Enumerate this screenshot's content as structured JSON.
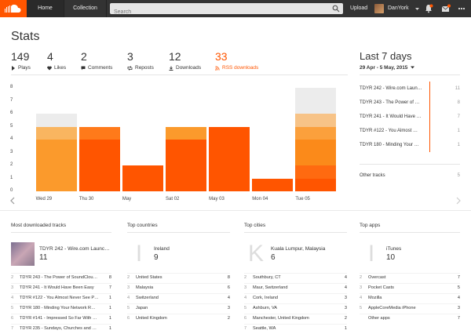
{
  "header": {
    "home": "Home",
    "collection": "Collection",
    "search_placeholder": "Search",
    "upload": "Upload",
    "username": "DanYork"
  },
  "page": {
    "title": "Stats"
  },
  "stats": [
    {
      "value": "149",
      "label": "Plays",
      "icon": "play-icon"
    },
    {
      "value": "4",
      "label": "Likes",
      "icon": "heart-icon"
    },
    {
      "value": "2",
      "label": "Comments",
      "icon": "comment-icon"
    },
    {
      "value": "3",
      "label": "Reposts",
      "icon": "repost-icon"
    },
    {
      "value": "12",
      "label": "Downloads",
      "icon": "download-icon"
    },
    {
      "value": "33",
      "label": "RSS downloads",
      "icon": "rss-icon",
      "active": true
    }
  ],
  "range": {
    "title": "Last 7 days",
    "dates": "29 Apr - 5 May, 2015"
  },
  "top_tracks_panel": [
    {
      "title": "TDYR 242 - Wire.com Laun…",
      "count": "11"
    },
    {
      "title": "TDYR 243 - The Power of …",
      "count": "8"
    },
    {
      "title": "TDYR 241 - It Would Have …",
      "count": "7"
    },
    {
      "title": "TDYR #122 - You Almost …",
      "count": "1"
    },
    {
      "title": "TDYR 180 - Minding Your …",
      "count": "1"
    }
  ],
  "other_tracks": {
    "label": "Other tracks",
    "count": "5"
  },
  "chart_data": {
    "type": "bar",
    "stacked": true,
    "categories": [
      "Wed 29",
      "Thu 30",
      "May",
      "Sat 02",
      "May 03",
      "Mon 04",
      "Tue 05"
    ],
    "segments": [
      [
        4,
        1,
        1
      ],
      [
        4,
        1,
        0
      ],
      [
        2
      ],
      [
        4,
        1
      ],
      [
        5
      ],
      [
        1
      ],
      [
        1,
        1,
        2,
        1,
        1,
        2
      ]
    ],
    "y_ticks": [
      0,
      1,
      2,
      3,
      4,
      5,
      6,
      7,
      8
    ],
    "ylim": [
      0,
      8
    ],
    "colors": {
      "primary": "#ff5500",
      "mid": "#ff7a1a",
      "light": "#f9a23d",
      "faded": "#ececec"
    },
    "segment_colors": [
      [
        "#fb9a2c",
        "#f9b560",
        "#ececec"
      ],
      [
        "#ff5500",
        "#ff7a1a"
      ],
      [
        "#ff5500"
      ],
      [
        "#ff5500",
        "#fb9a2c"
      ],
      [
        "#ff5500"
      ],
      [
        "#ff5500"
      ],
      [
        "#ff5500",
        "#ff6a10",
        "#fb8a1a",
        "#fba03c",
        "#f7c387",
        "#ececec"
      ]
    ]
  },
  "sections": {
    "tracks": {
      "title": "Most downloaded tracks",
      "top": {
        "name": "TDYR 242 - Wire.com Launc…",
        "value": "11"
      },
      "rows": [
        {
          "rank": "2",
          "name": "TDYR 243 - The Power of SoundClou…",
          "count": "8"
        },
        {
          "rank": "3",
          "name": "TDYR 241 - It Would Have Been Easy",
          "count": "7"
        },
        {
          "rank": "4",
          "name": "TDYR #122 - You Almost Never See P…",
          "count": "1"
        },
        {
          "rank": "5",
          "name": "TDYR 180 - Minding Your Network R…",
          "count": "1"
        },
        {
          "rank": "6",
          "name": "TDYR #141 - Impressed So Far With …",
          "count": "1"
        },
        {
          "rank": "7",
          "name": "TDYR 235 - Sundays, Churches and …",
          "count": "1"
        }
      ]
    },
    "countries": {
      "title": "Top countries",
      "top": {
        "letter": "I",
        "name": "Ireland",
        "value": "9"
      },
      "rows": [
        {
          "rank": "2",
          "name": "United States",
          "count": "8"
        },
        {
          "rank": "3",
          "name": "Malaysia",
          "count": "6"
        },
        {
          "rank": "4",
          "name": "Switzerland",
          "count": "4"
        },
        {
          "rank": "5",
          "name": "Japan",
          "count": "3"
        },
        {
          "rank": "6",
          "name": "United Kingdom",
          "count": "2"
        }
      ]
    },
    "cities": {
      "title": "Top cities",
      "top": {
        "letter": "K",
        "name": "Kuala Lumpur, Malaysia",
        "value": "6"
      },
      "rows": [
        {
          "rank": "2",
          "name": "Southbury, CT",
          "count": "4"
        },
        {
          "rank": "3",
          "name": "Maur, Switzerland",
          "count": "4"
        },
        {
          "rank": "4",
          "name": "Cork, Ireland",
          "count": "3"
        },
        {
          "rank": "5",
          "name": "Ashburn, VA",
          "count": "3"
        },
        {
          "rank": "6",
          "name": "Manchester, United Kingdom",
          "count": "2"
        },
        {
          "rank": "7",
          "name": "Seattle, WA",
          "count": "1"
        }
      ]
    },
    "apps": {
      "title": "Top apps",
      "top": {
        "letter": "I",
        "name": "iTunes",
        "value": "10"
      },
      "rows": [
        {
          "rank": "2",
          "name": "Overcast",
          "count": "7"
        },
        {
          "rank": "3",
          "name": "Pocket Casts",
          "count": "5"
        },
        {
          "rank": "4",
          "name": "Mozilla",
          "count": "4"
        },
        {
          "rank": "5",
          "name": "AppleCoreMedia iPhone",
          "count": "3"
        },
        {
          "rank": "",
          "name": "Other apps",
          "count": "7"
        }
      ]
    }
  }
}
